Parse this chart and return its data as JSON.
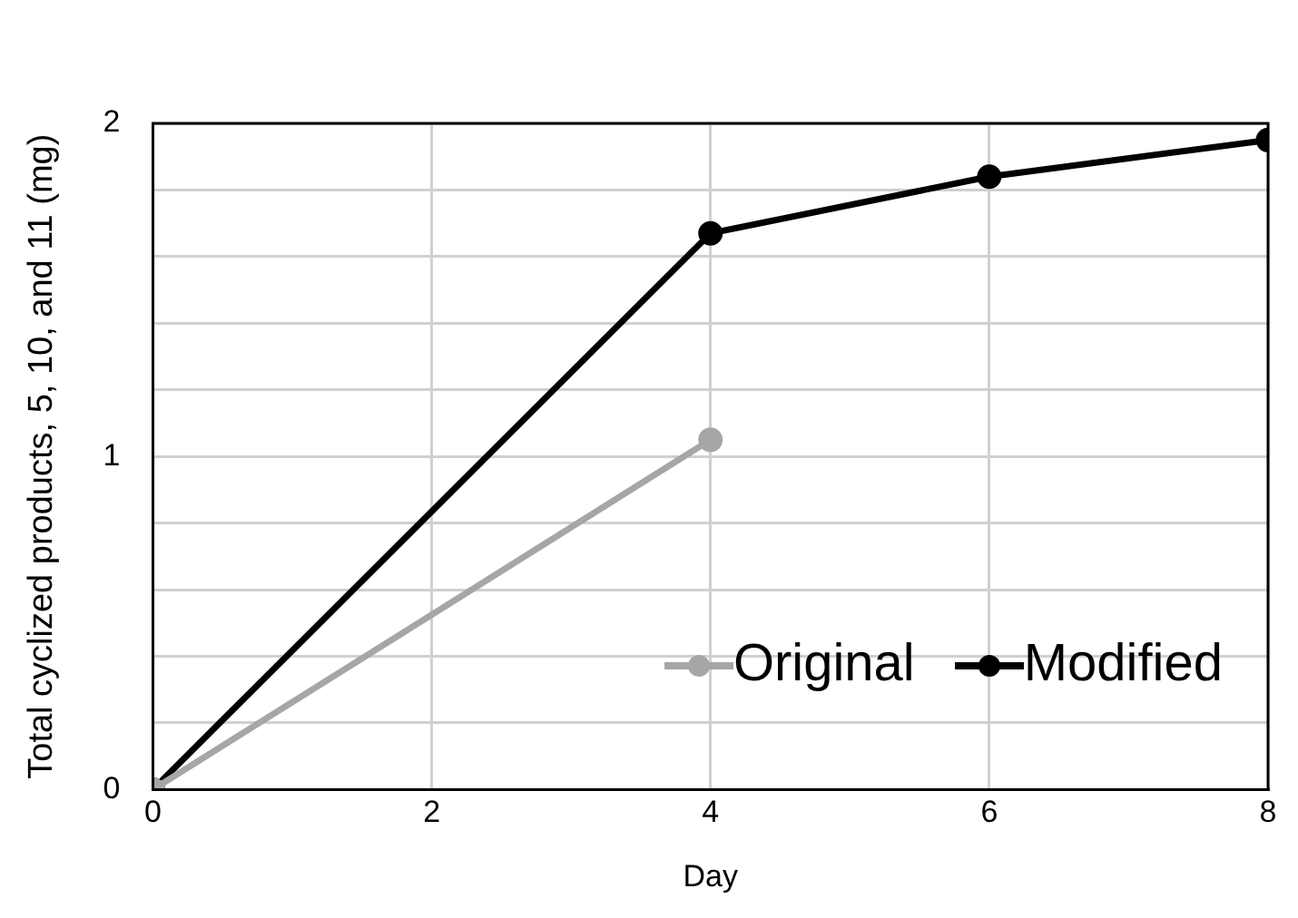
{
  "chart_data": {
    "type": "line",
    "xlabel": "Day",
    "ylabel": "Total cyclized products, 5, 10, and 11 (mg)",
    "xlim": [
      0,
      8
    ],
    "xticks": [
      0,
      2,
      4,
      6,
      8
    ],
    "ylim": [
      0,
      2
    ],
    "yticks": [
      0,
      {
        "value": 0.2,
        "label": null
      },
      {
        "value": 0.4,
        "label": null
      },
      {
        "value": 0.6,
        "label": null
      },
      {
        "value": 0.8,
        "label": null
      },
      1,
      {
        "value": 1.2,
        "label": null
      },
      {
        "value": 1.4,
        "label": null
      },
      {
        "value": 1.6,
        "label": null
      },
      {
        "value": 1.8,
        "label": null
      },
      2
    ],
    "grid": true,
    "legend": "bottom right",
    "marker": "circle",
    "line_style": "solid",
    "series": [
      {
        "name": "Original",
        "color": "#a6a6a6",
        "x": [
          0,
          4
        ],
        "values": [
          0,
          1.05
        ]
      },
      {
        "name": "Modified",
        "color": "#000000",
        "x": [
          0,
          4,
          6,
          8
        ],
        "values": [
          0,
          1.67,
          1.84,
          1.95
        ]
      }
    ]
  }
}
